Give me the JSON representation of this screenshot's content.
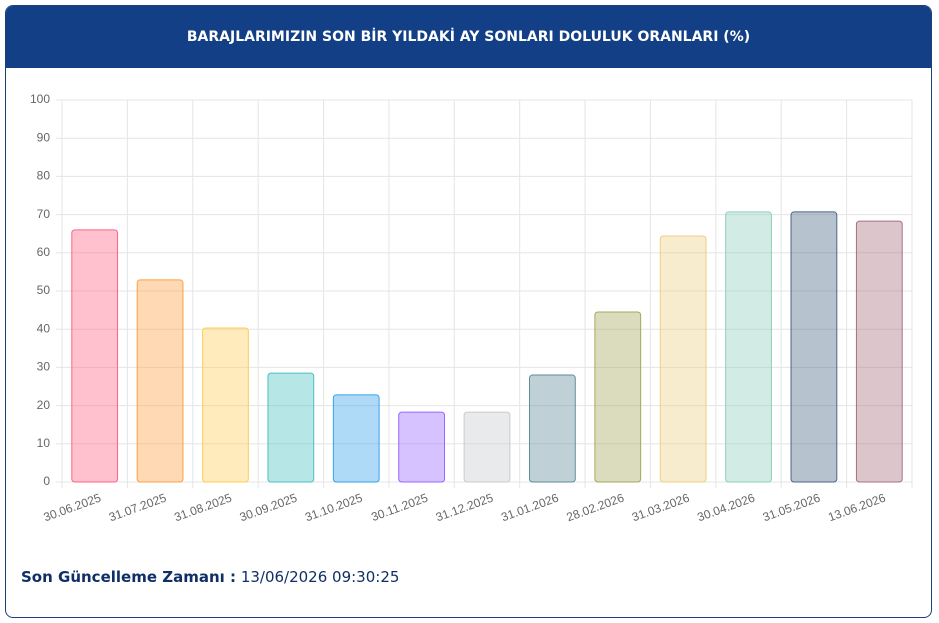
{
  "chart_data": {
    "type": "bar",
    "title": "BARAJLARIMIZIN SON BİR YILDAKİ AY SONLARI DOLULUK ORANLARI (%)",
    "categories": [
      "30.06.2025",
      "31.07.2025",
      "31.08.2025",
      "30.09.2025",
      "31.10.2025",
      "30.11.2025",
      "31.12.2025",
      "31.01.2026",
      "28.02.2026",
      "31.03.2026",
      "30.04.2026",
      "31.05.2026",
      "13.06.2026"
    ],
    "values": [
      66.0,
      52.9,
      40.3,
      28.5,
      22.8,
      18.3,
      18.3,
      28.0,
      44.5,
      64.4,
      70.7,
      70.7,
      68.3
    ],
    "colors": [
      "#ff6384",
      "#ff9f40",
      "#ffcd56",
      "#4bc0c0",
      "#36a2eb",
      "#9966ff",
      "#c9cbcf",
      "#5f8d98",
      "#a4a85a",
      "#eecf86",
      "#8fcfbd",
      "#4b6688",
      "#a8707f"
    ],
    "ylim": [
      0,
      100
    ],
    "yticks": [
      0,
      10,
      20,
      30,
      40,
      50,
      60,
      70,
      80,
      90,
      100
    ],
    "grid": true
  },
  "footer": {
    "label": "Son Güncelleme Zamanı :",
    "value": "13/06/2026 09:30:25"
  }
}
